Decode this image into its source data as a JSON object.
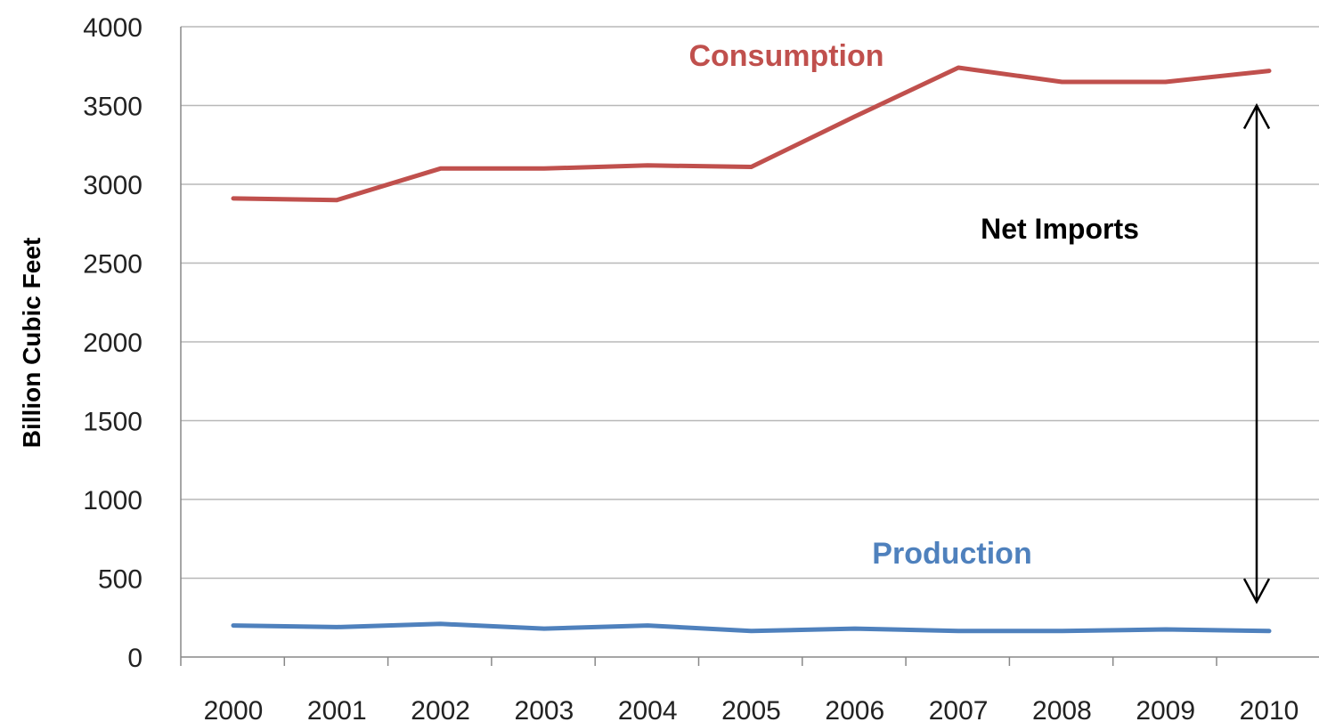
{
  "chart_data": {
    "type": "line",
    "title": "",
    "xlabel": "",
    "ylabel": "Billion Cubic Feet",
    "x": [
      "2000",
      "2001",
      "2002",
      "2003",
      "2004",
      "2005",
      "2006",
      "2007",
      "2008",
      "2009",
      "2010"
    ],
    "ylim": [
      0,
      4000
    ],
    "yticks": [
      0,
      500,
      1000,
      1500,
      2000,
      2500,
      3000,
      3500,
      4000
    ],
    "grid": true,
    "series": [
      {
        "name": "Consumption",
        "color": "#c0504d",
        "values": [
          2910,
          2900,
          3100,
          3100,
          3120,
          3110,
          3430,
          3740,
          3650,
          3650,
          3720
        ]
      },
      {
        "name": "Production",
        "color": "#4f81bd",
        "values": [
          200,
          190,
          210,
          180,
          200,
          165,
          180,
          165,
          165,
          175,
          165
        ]
      }
    ],
    "annotations": [
      {
        "text": "Net Imports",
        "type": "double-arrow",
        "at_x": "2010",
        "from_y": 350,
        "to_y": 3500
      }
    ]
  }
}
